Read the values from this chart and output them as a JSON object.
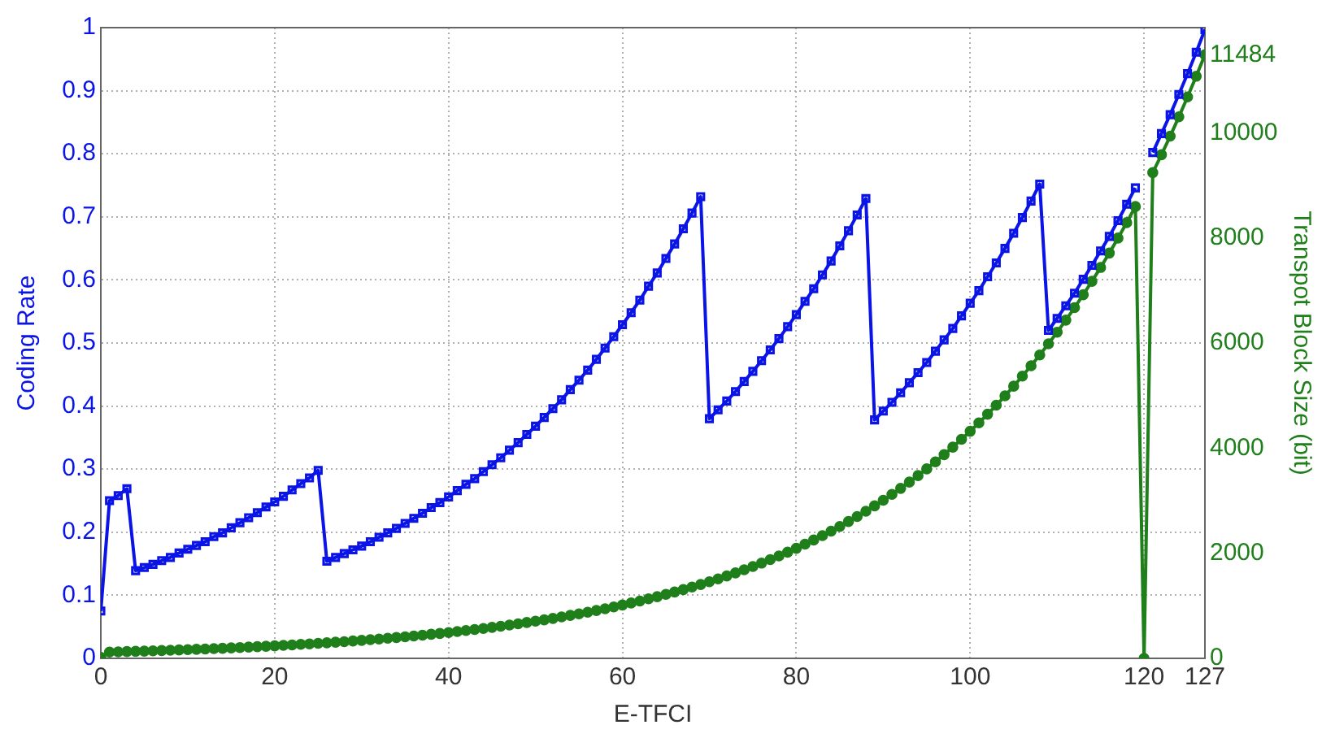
{
  "chart_data": {
    "type": "line",
    "xlabel": "E-TFCI",
    "ylabel": "Coding Rate",
    "y2label": "Transpot Block Size (bit)",
    "x": [
      0,
      1,
      2,
      3,
      4,
      5,
      6,
      7,
      8,
      9,
      10,
      11,
      12,
      13,
      14,
      15,
      16,
      17,
      18,
      19,
      20,
      21,
      22,
      23,
      24,
      25,
      26,
      27,
      28,
      29,
      30,
      31,
      32,
      33,
      34,
      35,
      36,
      37,
      38,
      39,
      40,
      41,
      42,
      43,
      44,
      45,
      46,
      47,
      48,
      49,
      50,
      51,
      52,
      53,
      54,
      55,
      56,
      57,
      58,
      59,
      60,
      61,
      62,
      63,
      64,
      65,
      66,
      67,
      68,
      69,
      70,
      71,
      72,
      73,
      74,
      75,
      76,
      77,
      78,
      79,
      80,
      81,
      82,
      83,
      84,
      85,
      86,
      87,
      88,
      89,
      90,
      91,
      92,
      93,
      94,
      95,
      96,
      97,
      98,
      99,
      100,
      101,
      102,
      103,
      104,
      105,
      106,
      107,
      108,
      109,
      110,
      111,
      112,
      113,
      114,
      115,
      116,
      117,
      118,
      119,
      120,
      121,
      122,
      123,
      124,
      125,
      126,
      127
    ],
    "xlim": [
      0,
      127
    ],
    "xticks": [
      0,
      20,
      40,
      60,
      80,
      100,
      120,
      127
    ],
    "ylim": [
      0,
      1
    ],
    "yticks": [
      0,
      0.1,
      0.2,
      0.3,
      0.4,
      0.5,
      0.6,
      0.7,
      0.8,
      0.9,
      1
    ],
    "y2lim": [
      0,
      12000
    ],
    "y2ticks": [
      0,
      2000,
      4000,
      6000,
      8000,
      10000,
      11484
    ],
    "grid": true,
    "line_style": "solid",
    "series": [
      {
        "color": "#0a14e6",
        "marker": "square",
        "axis": "y",
        "values": [
          0.075,
          0.25,
          0.258,
          0.269,
          0.139,
          0.144,
          0.149,
          0.155,
          0.16,
          0.167,
          0.173,
          0.179,
          0.185,
          0.193,
          0.199,
          0.207,
          0.215,
          0.223,
          0.231,
          0.24,
          0.248,
          0.257,
          0.267,
          0.277,
          0.286,
          0.298,
          0.154,
          0.16,
          0.166,
          0.172,
          0.178,
          0.185,
          0.192,
          0.199,
          0.206,
          0.214,
          0.222,
          0.23,
          0.239,
          0.247,
          0.256,
          0.266,
          0.276,
          0.285,
          0.296,
          0.307,
          0.318,
          0.33,
          0.342,
          0.355,
          0.368,
          0.382,
          0.396,
          0.41,
          0.426,
          0.441,
          0.457,
          0.474,
          0.492,
          0.51,
          0.529,
          0.548,
          0.568,
          0.59,
          0.611,
          0.634,
          0.657,
          0.681,
          0.706,
          0.732,
          0.38,
          0.394,
          0.408,
          0.423,
          0.439,
          0.455,
          0.472,
          0.489,
          0.507,
          0.526,
          0.545,
          0.566,
          0.586,
          0.608,
          0.63,
          0.654,
          0.678,
          0.703,
          0.729,
          0.378,
          0.392,
          0.406,
          0.421,
          0.437,
          0.453,
          0.469,
          0.487,
          0.505,
          0.523,
          0.543,
          0.563,
          0.583,
          0.605,
          0.627,
          0.65,
          0.674,
          0.699,
          0.725,
          0.752,
          0.52,
          0.539,
          0.559,
          0.579,
          0.601,
          0.623,
          0.646,
          0.669,
          0.694,
          0.72,
          0.746,
          null,
          0.802,
          0.832,
          0.862,
          0.894,
          0.927,
          0.961,
          0.997
        ]
      },
      {
        "color": "#1f7f1a",
        "marker": "circle",
        "axis": "y2",
        "values": [
          18,
          120,
          124,
          129,
          133,
          138,
          143,
          149,
          154,
          160,
          166,
          172,
          178,
          185,
          191,
          199,
          206,
          214,
          222,
          230,
          238,
          247,
          256,
          266,
          275,
          286,
          296,
          307,
          318,
          330,
          342,
          355,
          368,
          382,
          396,
          410,
          426,
          441,
          458,
          474,
          492,
          510,
          529,
          548,
          569,
          590,
          611,
          634,
          657,
          682,
          707,
          733,
          760,
          788,
          817,
          847,
          878,
          911,
          944,
          979,
          1015,
          1053,
          1091,
          1132,
          1173,
          1217,
          1262,
          1308,
          1356,
          1406,
          1458,
          1512,
          1568,
          1626,
          1685,
          1748,
          1812,
          1879,
          1948,
          2020,
          2094,
          2172,
          2252,
          2335,
          2421,
          2510,
          2603,
          2699,
          2798,
          2901,
          3008,
          3119,
          3234,
          3353,
          3477,
          3605,
          3738,
          3876,
          4019,
          4167,
          4321,
          4480,
          4645,
          4816,
          4994,
          5178,
          5369,
          5567,
          5772,
          5985,
          6206,
          6435,
          6672,
          6918,
          7173,
          7437,
          7711,
          7996,
          8290,
          8596,
          0,
          9241,
          9582,
          9935,
          10302,
          10681,
          11075,
          11484
        ]
      }
    ]
  }
}
